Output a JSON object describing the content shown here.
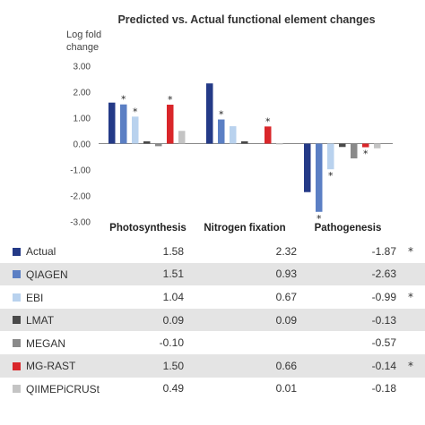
{
  "chart_data": {
    "type": "bar",
    "title": "Predicted vs. Actual functional element changes",
    "ylabel_lines": [
      "Log fold",
      "change"
    ],
    "ylim": [
      -3,
      3
    ],
    "yticks": [
      "3.00",
      "2.00",
      "1.00",
      "0.00",
      "-1.00",
      "-2.00",
      "-3.00"
    ],
    "grid": false,
    "categories": [
      "Photosynthesis",
      "Nitrogen fixation",
      "Pathogenesis"
    ],
    "series": [
      {
        "name": "Actual",
        "color": "#243a87",
        "values": [
          1.58,
          2.32,
          -1.87
        ],
        "display": [
          "1.58",
          "2.32",
          "-1.87"
        ],
        "stars": [
          false,
          false,
          false
        ]
      },
      {
        "name": "QIAGEN",
        "color": "#5b7fc4",
        "values": [
          1.51,
          0.93,
          -2.63
        ],
        "display": [
          "1.51",
          "0.93",
          "-2.63"
        ],
        "stars": [
          true,
          true,
          true
        ]
      },
      {
        "name": "EBI",
        "color": "#b9d2ee",
        "values": [
          1.04,
          0.67,
          -0.99
        ],
        "display": [
          "1.04",
          "0.67",
          "-0.99"
        ],
        "stars": [
          true,
          false,
          true
        ]
      },
      {
        "name": "LMAT",
        "color": "#4a4a4a",
        "values": [
          0.09,
          0.09,
          -0.13
        ],
        "display": [
          "0.09",
          "0.09",
          "-0.13"
        ],
        "stars": [
          false,
          false,
          false
        ]
      },
      {
        "name": "MEGAN",
        "color": "#8a8a8a",
        "values": [
          -0.1,
          null,
          -0.57
        ],
        "display": [
          "-0.10",
          "",
          "-0.57"
        ],
        "stars": [
          false,
          false,
          false
        ]
      },
      {
        "name": "MG-RAST",
        "color": "#d9262a",
        "values": [
          1.5,
          0.66,
          -0.14
        ],
        "display": [
          "1.50",
          "0.66",
          "-0.14"
        ],
        "stars": [
          true,
          true,
          true
        ]
      },
      {
        "name": "QIIMEPiCRUSt",
        "color": "#c4c4c4",
        "values": [
          0.49,
          0.01,
          -0.18
        ],
        "display": [
          "0.49",
          "0.01",
          "-0.18"
        ],
        "stars": [
          false,
          false,
          false
        ]
      }
    ],
    "row_stars": [
      true,
      false,
      true,
      false,
      false,
      true,
      false
    ],
    "star_symbol": "*"
  }
}
